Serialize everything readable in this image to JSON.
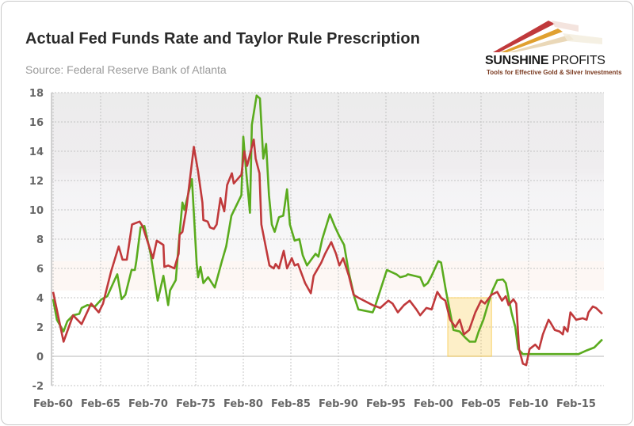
{
  "header": {
    "title": "Actual Fed Funds Rate and Taylor Rule Prescription",
    "source": "Source: Federal Reserve Bank of Atlanta"
  },
  "logo": {
    "name_bold": "SUNSHINE",
    "name_thin": " PROFITS",
    "tagline": "Tools for Effective Gold & Silver Investments"
  },
  "colors": {
    "actual": "#5aab1e",
    "taylor": "#c0393b",
    "highlight": "#f7c948"
  },
  "chart_data": {
    "type": "line",
    "title": "Actual Fed Funds Rate and Taylor Rule Prescription",
    "xlabel": "",
    "ylabel": "",
    "xlim": [
      1960,
      2017.8
    ],
    "ylim": [
      -2,
      18
    ],
    "yticks": [
      "-2",
      "0",
      "2",
      "4",
      "6",
      "8",
      "10",
      "12",
      "14",
      "16",
      "18"
    ],
    "ytick_values": [
      -2,
      0,
      2,
      4,
      6,
      8,
      10,
      12,
      14,
      16,
      18
    ],
    "xticks": [
      "Feb-60",
      "Feb-65",
      "Feb-70",
      "Feb-75",
      "Feb-80",
      "Feb-85",
      "Feb-90",
      "Feb-95",
      "Feb-00",
      "Feb-05",
      "Feb-10",
      "Feb-15"
    ],
    "xtick_values": [
      1960,
      1965,
      1970,
      1975,
      1980,
      1985,
      1990,
      1995,
      2000,
      2005,
      2010,
      2015
    ],
    "grid": true,
    "highlight": {
      "x": [
        2001.5,
        2006.1
      ],
      "y": [
        0,
        4
      ]
    },
    "series": [
      {
        "name": "Actual Fed Funds Rate",
        "color": "#5aab1e",
        "points": [
          [
            1960.0,
            3.9
          ],
          [
            1960.4,
            2.5
          ],
          [
            1961.1,
            1.7
          ],
          [
            1961.5,
            2.4
          ],
          [
            1962.1,
            2.8
          ],
          [
            1962.75,
            2.9
          ],
          [
            1963.0,
            3.3
          ],
          [
            1963.6,
            3.5
          ],
          [
            1964.4,
            3.4
          ],
          [
            1965.1,
            3.9
          ],
          [
            1965.7,
            4.1
          ],
          [
            1966.6,
            5.4
          ],
          [
            1966.75,
            5.6
          ],
          [
            1967.2,
            3.9
          ],
          [
            1967.6,
            4.2
          ],
          [
            1968.25,
            5.9
          ],
          [
            1968.6,
            5.9
          ],
          [
            1968.75,
            6.5
          ],
          [
            1969.2,
            8.8
          ],
          [
            1969.6,
            8.9
          ],
          [
            1970.25,
            7.0
          ],
          [
            1971.0,
            3.8
          ],
          [
            1971.6,
            5.5
          ],
          [
            1972.1,
            3.5
          ],
          [
            1972.3,
            4.5
          ],
          [
            1972.9,
            5.2
          ],
          [
            1973.25,
            8.0
          ],
          [
            1973.6,
            10.5
          ],
          [
            1973.8,
            10.0
          ],
          [
            1974.6,
            12.1
          ],
          [
            1975.1,
            6.3
          ],
          [
            1975.25,
            5.4
          ],
          [
            1975.5,
            6.1
          ],
          [
            1975.8,
            5.0
          ],
          [
            1976.3,
            5.4
          ],
          [
            1977.0,
            4.7
          ],
          [
            1977.75,
            6.5
          ],
          [
            1978.2,
            7.5
          ],
          [
            1978.75,
            9.6
          ],
          [
            1979.2,
            10.2
          ],
          [
            1979.8,
            11.0
          ],
          [
            1980.0,
            15.0
          ],
          [
            1980.25,
            13.0
          ],
          [
            1980.7,
            9.8
          ],
          [
            1980.9,
            15.8
          ],
          [
            1981.4,
            17.8
          ],
          [
            1981.75,
            17.6
          ],
          [
            1982.1,
            13.5
          ],
          [
            1982.4,
            14.5
          ],
          [
            1982.7,
            11.0
          ],
          [
            1983.0,
            9.0
          ],
          [
            1983.3,
            8.5
          ],
          [
            1983.75,
            9.5
          ],
          [
            1984.2,
            9.6
          ],
          [
            1984.6,
            11.4
          ],
          [
            1984.9,
            9.0
          ],
          [
            1985.4,
            7.9
          ],
          [
            1985.9,
            8.0
          ],
          [
            1986.25,
            6.9
          ],
          [
            1986.7,
            6.2
          ],
          [
            1987.25,
            6.7
          ],
          [
            1987.6,
            7.0
          ],
          [
            1987.9,
            6.8
          ],
          [
            1988.3,
            8.0
          ],
          [
            1989.1,
            9.7
          ],
          [
            1989.6,
            8.9
          ],
          [
            1990.1,
            8.2
          ],
          [
            1990.6,
            7.6
          ],
          [
            1991.1,
            5.7
          ],
          [
            1991.7,
            4.0
          ],
          [
            1992.1,
            3.2
          ],
          [
            1993.6,
            3.0
          ],
          [
            1993.8,
            3.3
          ],
          [
            1994.4,
            4.5
          ],
          [
            1995.1,
            5.9
          ],
          [
            1996.1,
            5.6
          ],
          [
            1996.5,
            5.4
          ],
          [
            1997.1,
            5.5
          ],
          [
            1997.3,
            5.6
          ],
          [
            1998.6,
            5.4
          ],
          [
            1999.0,
            4.8
          ],
          [
            1999.4,
            5.0
          ],
          [
            1999.8,
            5.5
          ],
          [
            2000.5,
            6.5
          ],
          [
            2000.8,
            6.4
          ],
          [
            2001.3,
            4.5
          ],
          [
            2001.6,
            3.5
          ],
          [
            2002.1,
            1.8
          ],
          [
            2002.75,
            1.7
          ],
          [
            2003.3,
            1.3
          ],
          [
            2003.8,
            1.0
          ],
          [
            2004.4,
            1.0
          ],
          [
            2004.75,
            1.7
          ],
          [
            2005.25,
            2.5
          ],
          [
            2005.75,
            3.6
          ],
          [
            2006.2,
            4.5
          ],
          [
            2006.7,
            5.2
          ],
          [
            2007.3,
            5.25
          ],
          [
            2007.6,
            5.0
          ],
          [
            2008.2,
            3.0
          ],
          [
            2008.6,
            2.0
          ],
          [
            2008.9,
            0.5
          ],
          [
            2009.4,
            0.15
          ],
          [
            2015.25,
            0.15
          ],
          [
            2016.1,
            0.4
          ],
          [
            2016.9,
            0.6
          ],
          [
            2017.75,
            1.15
          ]
        ]
      },
      {
        "name": "Taylor Rule Prescription",
        "color": "#c0393b",
        "points": [
          [
            1960.0,
            4.4
          ],
          [
            1961.1,
            1.0
          ],
          [
            1962.1,
            2.8
          ],
          [
            1963.0,
            2.2
          ],
          [
            1964.0,
            3.6
          ],
          [
            1964.8,
            3.0
          ],
          [
            1965.25,
            3.6
          ],
          [
            1966.1,
            5.8
          ],
          [
            1966.9,
            7.5
          ],
          [
            1967.3,
            6.6
          ],
          [
            1967.75,
            6.6
          ],
          [
            1968.3,
            9.0
          ],
          [
            1969.1,
            9.2
          ],
          [
            1969.4,
            8.9
          ],
          [
            1970.25,
            7.2
          ],
          [
            1970.5,
            6.7
          ],
          [
            1970.9,
            7.9
          ],
          [
            1971.6,
            7.6
          ],
          [
            1971.7,
            6.1
          ],
          [
            1972.1,
            6.2
          ],
          [
            1972.75,
            6.0
          ],
          [
            1973.2,
            7.0
          ],
          [
            1973.3,
            8.3
          ],
          [
            1973.6,
            8.5
          ],
          [
            1974.0,
            10.0
          ],
          [
            1974.8,
            14.3
          ],
          [
            1975.25,
            12.6
          ],
          [
            1975.7,
            10.5
          ],
          [
            1975.8,
            9.3
          ],
          [
            1976.25,
            9.2
          ],
          [
            1976.5,
            8.8
          ],
          [
            1976.9,
            8.7
          ],
          [
            1977.2,
            9.0
          ],
          [
            1977.6,
            10.8
          ],
          [
            1978.0,
            9.9
          ],
          [
            1978.3,
            11.7
          ],
          [
            1978.8,
            12.5
          ],
          [
            1979.0,
            11.8
          ],
          [
            1979.8,
            12.4
          ],
          [
            1980.1,
            14.0
          ],
          [
            1980.4,
            13.0
          ],
          [
            1981.1,
            14.8
          ],
          [
            1981.3,
            13.5
          ],
          [
            1981.7,
            12.5
          ],
          [
            1981.9,
            9.0
          ],
          [
            1982.75,
            6.2
          ],
          [
            1983.2,
            6.0
          ],
          [
            1983.4,
            6.3
          ],
          [
            1983.75,
            6.0
          ],
          [
            1984.25,
            7.2
          ],
          [
            1984.6,
            6.0
          ],
          [
            1985.1,
            6.7
          ],
          [
            1985.4,
            6.2
          ],
          [
            1985.75,
            6.3
          ],
          [
            1986.5,
            5.0
          ],
          [
            1987.1,
            4.3
          ],
          [
            1987.4,
            5.5
          ],
          [
            1988.2,
            6.4
          ],
          [
            1988.6,
            7.0
          ],
          [
            1989.25,
            7.8
          ],
          [
            1989.75,
            7.0
          ],
          [
            1990.1,
            6.2
          ],
          [
            1990.5,
            6.7
          ],
          [
            1991.1,
            5.5
          ],
          [
            1991.6,
            4.2
          ],
          [
            1992.1,
            4.0
          ],
          [
            1993.6,
            3.5
          ],
          [
            1994.4,
            3.3
          ],
          [
            1995.25,
            3.8
          ],
          [
            1995.7,
            3.6
          ],
          [
            1996.25,
            3.0
          ],
          [
            1996.9,
            3.5
          ],
          [
            1997.5,
            3.8
          ],
          [
            1998.2,
            3.2
          ],
          [
            1998.6,
            2.8
          ],
          [
            1999.25,
            3.3
          ],
          [
            1999.8,
            3.2
          ],
          [
            2000.4,
            4.4
          ],
          [
            2000.8,
            4.0
          ],
          [
            2001.25,
            3.8
          ],
          [
            2001.75,
            2.5
          ],
          [
            2002.3,
            2.0
          ],
          [
            2002.75,
            2.5
          ],
          [
            2003.2,
            1.5
          ],
          [
            2003.75,
            1.8
          ],
          [
            2004.4,
            3.0
          ],
          [
            2005.0,
            3.8
          ],
          [
            2005.4,
            3.6
          ],
          [
            2006.1,
            4.2
          ],
          [
            2006.7,
            4.4
          ],
          [
            2007.2,
            3.8
          ],
          [
            2007.6,
            4.1
          ],
          [
            2007.9,
            3.5
          ],
          [
            2008.4,
            3.9
          ],
          [
            2008.7,
            3.6
          ],
          [
            2009.0,
            0.5
          ],
          [
            2009.4,
            -0.5
          ],
          [
            2009.75,
            -0.6
          ],
          [
            2010.1,
            0.5
          ],
          [
            2010.7,
            0.8
          ],
          [
            2011.1,
            0.5
          ],
          [
            2011.5,
            1.5
          ],
          [
            2012.1,
            2.5
          ],
          [
            2012.3,
            2.3
          ],
          [
            2012.75,
            1.8
          ],
          [
            2013.25,
            1.7
          ],
          [
            2013.6,
            1.5
          ],
          [
            2013.75,
            2.0
          ],
          [
            2014.1,
            1.7
          ],
          [
            2014.4,
            3.0
          ],
          [
            2015.0,
            2.5
          ],
          [
            2015.7,
            2.6
          ],
          [
            2016.1,
            2.5
          ],
          [
            2016.3,
            3.0
          ],
          [
            2016.75,
            3.4
          ],
          [
            2017.1,
            3.3
          ],
          [
            2017.75,
            2.9
          ]
        ]
      }
    ]
  }
}
